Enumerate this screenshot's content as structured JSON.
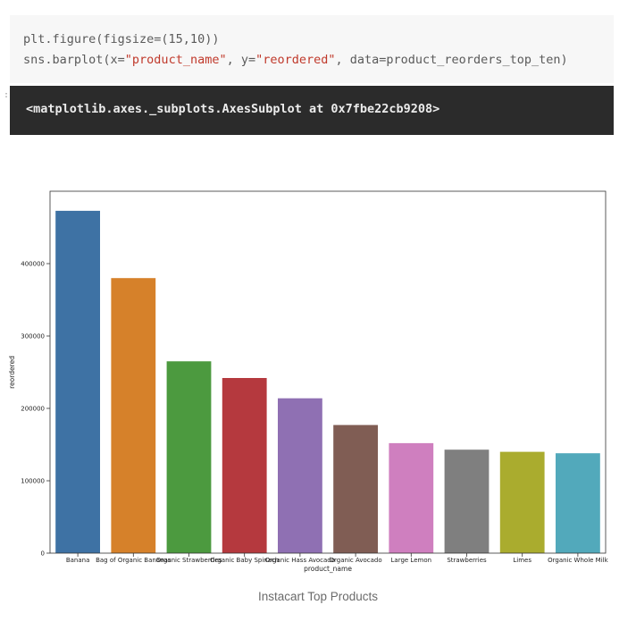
{
  "code": {
    "line1": "plt.figure(figsize=(15,10))",
    "line2_prefix": "sns.barplot(x=",
    "line2_x": "\"product_name\"",
    "line2_mid": ", y=",
    "line2_y": "\"reordered\"",
    "line2_suffix": ", data=product_reorders_top_ten)"
  },
  "output": {
    "marker": ":",
    "text": "<matplotlib.axes._subplots.AxesSubplot at 0x7fbe22cb9208>"
  },
  "caption": "Instacart Top Products",
  "chart_data": {
    "type": "bar",
    "categories": [
      "Banana",
      "Bag of Organic Bananas",
      "Organic Strawberries",
      "Organic Baby Spinach",
      "Organic Hass Avocado",
      "Organic Avocado",
      "Large Lemon",
      "Strawberries",
      "Limes",
      "Organic Whole Milk"
    ],
    "values": [
      473000,
      380000,
      265000,
      242000,
      214000,
      177000,
      152000,
      143000,
      140000,
      138000
    ],
    "colors": [
      "#3e72a4",
      "#d6812a",
      "#4c9a3f",
      "#b5393e",
      "#8f70b3",
      "#805d54",
      "#cf7fbf",
      "#7f7f7f",
      "#aaac2e",
      "#52a9bb"
    ],
    "xlabel": "product_name",
    "ylabel": "reordered",
    "ylim": [
      0,
      500000
    ],
    "yticks": [
      0,
      100000,
      200000,
      300000,
      400000
    ],
    "ytick_labels": [
      "0",
      "100000",
      "200000",
      "300000",
      "400000"
    ],
    "grid": false
  }
}
